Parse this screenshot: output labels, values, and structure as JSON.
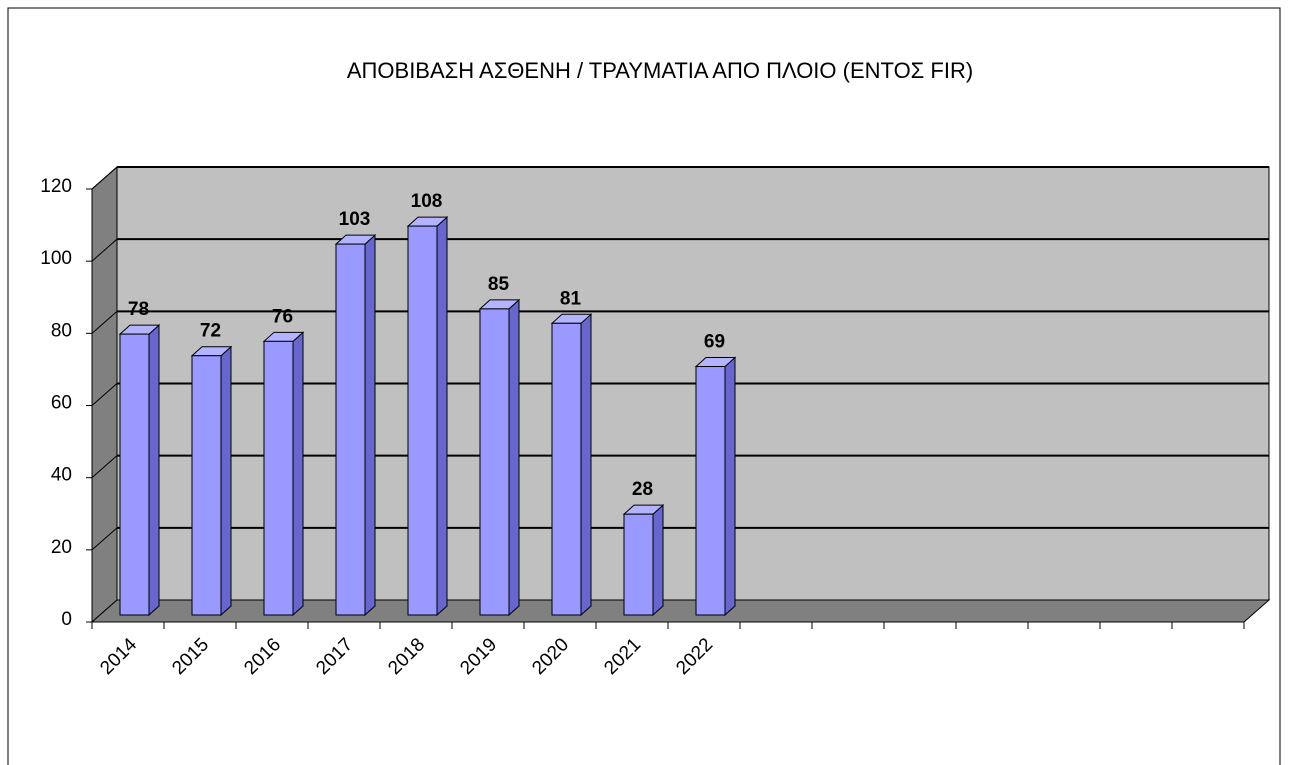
{
  "chart_data": {
    "type": "bar3d",
    "title": "ΑΠΟΒΙΒΑΣΗ ΑΣΘΕΝΗ / ΤΡΑΥΜΑΤΙΑ ΑΠΟ ΠΛΟΙΟ (ΕΝΤΟΣ FIR)",
    "categories": [
      "2014",
      "2015",
      "2016",
      "2017",
      "2018",
      "2019",
      "2020",
      "2021",
      "2022",
      null,
      null,
      null,
      null,
      null,
      null,
      null
    ],
    "values": [
      78,
      72,
      76,
      103,
      108,
      85,
      81,
      28,
      69,
      null,
      null,
      null,
      null,
      null,
      null,
      null
    ],
    "color": "#9999ff",
    "ylim": [
      0,
      120
    ],
    "yticks": [
      0,
      20,
      40,
      60,
      80,
      100,
      120
    ],
    "grid": true
  }
}
